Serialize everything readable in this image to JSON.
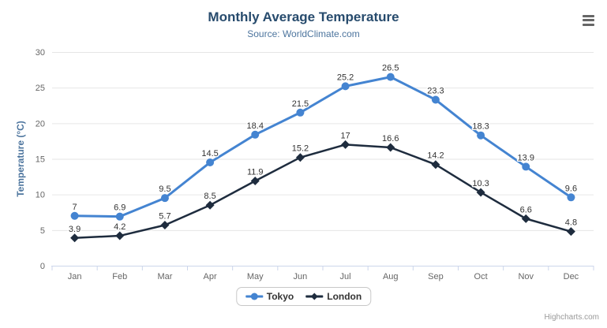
{
  "page": {
    "credits": "Highcharts.com"
  },
  "export_menu": {
    "icon": "hamburger-icon"
  },
  "chart_data": {
    "type": "line",
    "title": "Monthly Average Temperature",
    "subtitle": "Source: WorldClimate.com",
    "categories": [
      "Jan",
      "Feb",
      "Mar",
      "Apr",
      "May",
      "Jun",
      "Jul",
      "Aug",
      "Sep",
      "Oct",
      "Nov",
      "Dec"
    ],
    "series": [
      {
        "name": "Tokyo",
        "color": "#4484d1",
        "marker": "circle",
        "values": [
          7,
          6.9,
          9.5,
          14.5,
          18.4,
          21.5,
          25.2,
          26.5,
          23.3,
          18.3,
          13.9,
          9.6
        ]
      },
      {
        "name": "London",
        "color": "#1e2c3e",
        "marker": "diamond",
        "values": [
          3.9,
          4.2,
          5.7,
          8.5,
          11.9,
          15.2,
          17,
          16.6,
          14.2,
          10.3,
          6.6,
          4.8
        ]
      }
    ],
    "xlabel": "",
    "ylabel": "Temperature (°C)",
    "ylim": [
      0,
      30
    ],
    "yticks": [
      0,
      5,
      10,
      15,
      20,
      25,
      30
    ],
    "grid": true,
    "legend_position": "bottom",
    "data_labels": true,
    "colors": {
      "title": "#274b6d",
      "subtitle": "#4d759e",
      "axis_label": "#666666",
      "axis_title": "#4d759e",
      "gridline": "#e6e6e6",
      "axis_line": "#ccd6eb",
      "data_label": "#333333",
      "legend_border": "#c8c8c8",
      "credits": "#999999",
      "export_icon": "#666666"
    }
  }
}
